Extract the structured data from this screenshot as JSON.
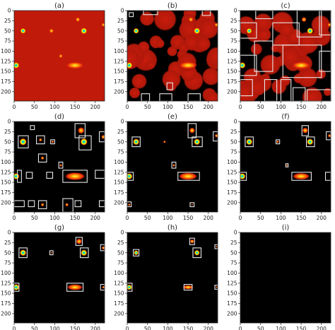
{
  "colors": {
    "background_heat": "#c01a0a",
    "background_zero": "#000000",
    "box": "#e8e8e8",
    "colormap": "jet-like"
  },
  "chart_data": [
    {
      "type": "heatmap",
      "title": "(a)",
      "x_ticks": [
        "0",
        "50",
        "100",
        "150",
        "200"
      ],
      "y_ticks": [
        "0",
        "25",
        "50",
        "75",
        "100",
        "125",
        "150",
        "175",
        "200"
      ],
      "xlim": [
        0,
        223
      ],
      "ylim": [
        223,
        0
      ],
      "background": "heat",
      "peaks": [
        {
          "x": 22,
          "y": 50,
          "radius": 7,
          "peak": 0.8
        },
        {
          "x": 172,
          "y": 50,
          "radius": 8,
          "peak": 0.8
        },
        {
          "x": 157,
          "y": 22,
          "radius": 6,
          "peak": 0.5
        },
        {
          "x": 220,
          "y": 35,
          "radius": 5,
          "peak": 0.4
        },
        {
          "x": 5,
          "y": 135,
          "radius": 8,
          "peak": 0.8
        },
        {
          "x": 150,
          "y": 135,
          "radius": 12,
          "peak": 0.45
        },
        {
          "x": 92,
          "y": 50,
          "radius": 6,
          "peak": 0.3
        },
        {
          "x": 115,
          "y": 112,
          "radius": 5,
          "peak": 0.3
        }
      ],
      "boxes": []
    },
    {
      "type": "heatmap",
      "title": "(b)",
      "x_ticks": [
        "0",
        "50",
        "100",
        "150",
        "200"
      ],
      "y_ticks": [
        "0",
        "25",
        "50",
        "75",
        "100",
        "125",
        "150",
        "175",
        "200"
      ],
      "xlim": [
        0,
        223
      ],
      "ylim": [
        223,
        0
      ],
      "background": "mixed",
      "peaks": [
        {
          "x": 22,
          "y": 50,
          "radius": 7,
          "peak": 0.8
        },
        {
          "x": 172,
          "y": 50,
          "radius": 8,
          "peak": 0.8
        },
        {
          "x": 157,
          "y": 22,
          "radius": 6,
          "peak": 0.5
        },
        {
          "x": 220,
          "y": 35,
          "radius": 5,
          "peak": 0.4
        },
        {
          "x": 5,
          "y": 135,
          "radius": 8,
          "peak": 0.8
        },
        {
          "x": 150,
          "y": 135,
          "radius": 12,
          "peak": 0.45
        }
      ],
      "boxes": [
        {
          "x0": 5,
          "y0": 5,
          "x1": 15,
          "y1": 15
        },
        {
          "x0": 40,
          "y0": 0,
          "x1": 75,
          "y1": 10
        },
        {
          "x0": 185,
          "y0": 0,
          "x1": 205,
          "y1": 12
        },
        {
          "x0": 98,
          "y0": 178,
          "x1": 112,
          "y1": 195
        },
        {
          "x0": 35,
          "y0": 205,
          "x1": 55,
          "y1": 223
        },
        {
          "x0": 80,
          "y0": 205,
          "x1": 110,
          "y1": 223
        },
        {
          "x0": 150,
          "y0": 205,
          "x1": 180,
          "y1": 223
        }
      ]
    },
    {
      "type": "heatmap",
      "title": "(c)",
      "x_ticks": [
        "0",
        "50",
        "100",
        "150",
        "200"
      ],
      "y_ticks": [
        "0",
        "25",
        "50",
        "75",
        "100",
        "125",
        "150",
        "175",
        "200"
      ],
      "xlim": [
        0,
        223
      ],
      "ylim": [
        223,
        0
      ],
      "background": "mixed",
      "peaks": [
        {
          "x": 22,
          "y": 50,
          "radius": 7,
          "peak": 0.8
        },
        {
          "x": 172,
          "y": 50,
          "radius": 8,
          "peak": 0.8
        },
        {
          "x": 157,
          "y": 22,
          "radius": 6,
          "peak": 0.5
        },
        {
          "x": 220,
          "y": 35,
          "radius": 5,
          "peak": 0.4
        },
        {
          "x": 5,
          "y": 135,
          "radius": 8,
          "peak": 0.8
        },
        {
          "x": 150,
          "y": 135,
          "radius": 12,
          "peak": 0.45
        }
      ],
      "boxes": [
        {
          "x0": 0,
          "y0": 30,
          "x1": 40,
          "y1": 68
        },
        {
          "x0": 38,
          "y0": 0,
          "x1": 80,
          "y1": 20
        },
        {
          "x0": 80,
          "y0": 30,
          "x1": 145,
          "y1": 85
        },
        {
          "x0": 140,
          "y0": 0,
          "x1": 200,
          "y1": 65
        },
        {
          "x0": 195,
          "y0": 0,
          "x1": 223,
          "y1": 60
        },
        {
          "x0": 0,
          "y0": 110,
          "x1": 40,
          "y1": 160
        },
        {
          "x0": 0,
          "y0": 170,
          "x1": 30,
          "y1": 210
        },
        {
          "x0": 35,
          "y0": 75,
          "x1": 80,
          "y1": 150
        },
        {
          "x0": 60,
          "y0": 170,
          "x1": 90,
          "y1": 223
        },
        {
          "x0": 105,
          "y0": 85,
          "x1": 200,
          "y1": 165
        },
        {
          "x0": 195,
          "y0": 100,
          "x1": 223,
          "y1": 150
        },
        {
          "x0": 100,
          "y0": 170,
          "x1": 125,
          "y1": 223
        },
        {
          "x0": 130,
          "y0": 190,
          "x1": 160,
          "y1": 223
        },
        {
          "x0": 165,
          "y0": 195,
          "x1": 223,
          "y1": 223
        }
      ]
    },
    {
      "type": "heatmap",
      "title": "(d)",
      "x_ticks": [
        "0",
        "50",
        "100",
        "150",
        "200"
      ],
      "y_ticks": [
        "0",
        "25",
        "50",
        "75",
        "100",
        "125",
        "150",
        "175",
        "200"
      ],
      "xlim": [
        0,
        223
      ],
      "ylim": [
        223,
        0
      ],
      "background": "zero",
      "peaks": [
        {
          "x": 22,
          "y": 50,
          "radius": 9,
          "peak": 0.8
        },
        {
          "x": 172,
          "y": 50,
          "radius": 9,
          "peak": 0.8
        },
        {
          "x": 165,
          "y": 22,
          "radius": 8,
          "peak": 0.5
        },
        {
          "x": 220,
          "y": 38,
          "radius": 5,
          "peak": 0.4
        },
        {
          "x": 5,
          "y": 135,
          "radius": 8,
          "peak": 0.8
        },
        {
          "x": 150,
          "y": 135,
          "radius": 13,
          "peak": 0.45
        },
        {
          "x": 65,
          "y": 45,
          "radius": 4,
          "peak": 0.3
        },
        {
          "x": 95,
          "y": 50,
          "radius": 3,
          "peak": 0.3
        },
        {
          "x": 115,
          "y": 108,
          "radius": 3,
          "peak": 0.3
        },
        {
          "x": 70,
          "y": 90,
          "radius": 4,
          "peak": 0.25
        },
        {
          "x": 70,
          "y": 205,
          "radius": 4,
          "peak": 0.25
        },
        {
          "x": 130,
          "y": 205,
          "radius": 4,
          "peak": 0.25
        }
      ],
      "boxes": [
        {
          "x0": 10,
          "y0": 35,
          "x1": 35,
          "y1": 65
        },
        {
          "x0": 8,
          "y0": 120,
          "x1": 18,
          "y1": 150
        },
        {
          "x0": 120,
          "y0": 120,
          "x1": 180,
          "y1": 150
        },
        {
          "x0": 150,
          "y0": 5,
          "x1": 175,
          "y1": 40
        },
        {
          "x0": 160,
          "y0": 35,
          "x1": 190,
          "y1": 70
        },
        {
          "x0": 210,
          "y0": 25,
          "x1": 223,
          "y1": 50
        },
        {
          "x0": 55,
          "y0": 35,
          "x1": 75,
          "y1": 55
        },
        {
          "x0": 90,
          "y0": 45,
          "x1": 100,
          "y1": 55
        },
        {
          "x0": 110,
          "y0": 100,
          "x1": 120,
          "y1": 115
        },
        {
          "x0": 60,
          "y0": 80,
          "x1": 80,
          "y1": 100
        },
        {
          "x0": 40,
          "y0": 10,
          "x1": 50,
          "y1": 20
        },
        {
          "x0": 30,
          "y0": 125,
          "x1": 45,
          "y1": 140
        },
        {
          "x0": 80,
          "y0": 125,
          "x1": 95,
          "y1": 140
        },
        {
          "x0": 200,
          "y0": 120,
          "x1": 223,
          "y1": 140
        },
        {
          "x0": 0,
          "y0": 195,
          "x1": 25,
          "y1": 210
        },
        {
          "x0": 35,
          "y0": 195,
          "x1": 50,
          "y1": 210
        },
        {
          "x0": 60,
          "y0": 195,
          "x1": 80,
          "y1": 215
        },
        {
          "x0": 120,
          "y0": 190,
          "x1": 145,
          "y1": 223
        },
        {
          "x0": 150,
          "y0": 195,
          "x1": 165,
          "y1": 210
        },
        {
          "x0": 210,
          "y0": 195,
          "x1": 223,
          "y1": 210
        }
      ]
    },
    {
      "type": "heatmap",
      "title": "(e)",
      "x_ticks": [
        "0",
        "50",
        "100",
        "150",
        "200"
      ],
      "y_ticks": [
        "0",
        "25",
        "50",
        "75",
        "100",
        "125",
        "150",
        "175",
        "200"
      ],
      "xlim": [
        0,
        223
      ],
      "ylim": [
        223,
        0
      ],
      "background": "zero",
      "peaks": [
        {
          "x": 22,
          "y": 50,
          "radius": 8,
          "peak": 0.8
        },
        {
          "x": 172,
          "y": 50,
          "radius": 8,
          "peak": 0.8
        },
        {
          "x": 160,
          "y": 22,
          "radius": 7,
          "peak": 0.5
        },
        {
          "x": 220,
          "y": 35,
          "radius": 4,
          "peak": 0.4
        },
        {
          "x": 5,
          "y": 135,
          "radius": 8,
          "peak": 0.8
        },
        {
          "x": 150,
          "y": 135,
          "radius": 12,
          "peak": 0.45
        },
        {
          "x": 92,
          "y": 50,
          "radius": 3,
          "peak": 0.3
        },
        {
          "x": 115,
          "y": 108,
          "radius": 3,
          "peak": 0.3
        },
        {
          "x": 5,
          "y": 205,
          "radius": 3,
          "peak": 0.25
        },
        {
          "x": 160,
          "y": 205,
          "radius": 2,
          "peak": 0.25
        }
      ],
      "boxes": [
        {
          "x0": 12,
          "y0": 38,
          "x1": 32,
          "y1": 62
        },
        {
          "x0": 160,
          "y0": 38,
          "x1": 185,
          "y1": 62
        },
        {
          "x0": 150,
          "y0": 5,
          "x1": 170,
          "y1": 40
        },
        {
          "x0": 212,
          "y0": 25,
          "x1": 223,
          "y1": 48
        },
        {
          "x0": 0,
          "y0": 125,
          "x1": 15,
          "y1": 145
        },
        {
          "x0": 125,
          "y0": 125,
          "x1": 178,
          "y1": 145
        },
        {
          "x0": 110,
          "y0": 100,
          "x1": 120,
          "y1": 115
        },
        {
          "x0": 0,
          "y0": 198,
          "x1": 10,
          "y1": 210
        },
        {
          "x0": 155,
          "y0": 200,
          "x1": 165,
          "y1": 210
        }
      ]
    },
    {
      "type": "heatmap",
      "title": "(f)",
      "x_ticks": [
        "0",
        "50",
        "100",
        "150",
        "200"
      ],
      "y_ticks": [
        "0",
        "25",
        "50",
        "75",
        "100",
        "125",
        "150",
        "175",
        "200"
      ],
      "xlim": [
        0,
        223
      ],
      "ylim": [
        223,
        0
      ],
      "background": "zero",
      "peaks": [
        {
          "x": 22,
          "y": 50,
          "radius": 8,
          "peak": 0.8
        },
        {
          "x": 172,
          "y": 50,
          "radius": 8,
          "peak": 0.8
        },
        {
          "x": 160,
          "y": 22,
          "radius": 7,
          "peak": 0.5
        },
        {
          "x": 220,
          "y": 35,
          "radius": 4,
          "peak": 0.4
        },
        {
          "x": 5,
          "y": 135,
          "radius": 8,
          "peak": 0.8
        },
        {
          "x": 150,
          "y": 135,
          "radius": 11,
          "peak": 0.45
        },
        {
          "x": 92,
          "y": 50,
          "radius": 3,
          "peak": 0.3
        },
        {
          "x": 115,
          "y": 108,
          "radius": 2,
          "peak": 0.3
        }
      ],
      "boxes": [
        {
          "x0": 12,
          "y0": 38,
          "x1": 32,
          "y1": 62
        },
        {
          "x0": 163,
          "y0": 38,
          "x1": 183,
          "y1": 62
        },
        {
          "x0": 152,
          "y0": 10,
          "x1": 168,
          "y1": 35
        },
        {
          "x0": 212,
          "y0": 25,
          "x1": 223,
          "y1": 45
        },
        {
          "x0": 0,
          "y0": 125,
          "x1": 15,
          "y1": 145
        },
        {
          "x0": 127,
          "y0": 125,
          "x1": 175,
          "y1": 145
        },
        {
          "x0": 88,
          "y0": 45,
          "x1": 97,
          "y1": 55
        },
        {
          "x0": 112,
          "y0": 104,
          "x1": 118,
          "y1": 112
        },
        {
          "x0": 210,
          "y0": 125,
          "x1": 223,
          "y1": 145
        }
      ]
    },
    {
      "type": "heatmap",
      "title": "(g)",
      "x_ticks": [
        "0",
        "50",
        "100",
        "150",
        "200"
      ],
      "y_ticks": [
        "0",
        "25",
        "50",
        "75",
        "100",
        "125",
        "150",
        "175",
        "200"
      ],
      "xlim": [
        0,
        223
      ],
      "ylim": [
        223,
        0
      ],
      "background": "zero",
      "peaks": [
        {
          "x": 22,
          "y": 50,
          "radius": 8,
          "peak": 0.8
        },
        {
          "x": 172,
          "y": 50,
          "radius": 8,
          "peak": 0.8
        },
        {
          "x": 160,
          "y": 22,
          "radius": 7,
          "peak": 0.5
        },
        {
          "x": 220,
          "y": 38,
          "radius": 4,
          "peak": 0.4
        },
        {
          "x": 5,
          "y": 135,
          "radius": 8,
          "peak": 0.8
        },
        {
          "x": 150,
          "y": 135,
          "radius": 10,
          "peak": 0.45
        },
        {
          "x": 92,
          "y": 50,
          "radius": 2,
          "peak": 0.3
        },
        {
          "x": 220,
          "y": 135,
          "radius": 3,
          "peak": 0.3
        }
      ],
      "boxes": [
        {
          "x0": 12,
          "y0": 38,
          "x1": 32,
          "y1": 62
        },
        {
          "x0": 163,
          "y0": 38,
          "x1": 183,
          "y1": 62
        },
        {
          "x0": 152,
          "y0": 12,
          "x1": 168,
          "y1": 32
        },
        {
          "x0": 213,
          "y0": 30,
          "x1": 223,
          "y1": 45
        },
        {
          "x0": 0,
          "y0": 125,
          "x1": 12,
          "y1": 145
        },
        {
          "x0": 130,
          "y0": 125,
          "x1": 170,
          "y1": 145
        },
        {
          "x0": 88,
          "y0": 45,
          "x1": 96,
          "y1": 55
        },
        {
          "x0": 213,
          "y0": 128,
          "x1": 223,
          "y1": 142
        }
      ]
    },
    {
      "type": "heatmap",
      "title": "(h)",
      "x_ticks": [
        "0",
        "50",
        "100",
        "150",
        "200"
      ],
      "y_ticks": [
        "0",
        "25",
        "50",
        "75",
        "100",
        "125",
        "150",
        "175",
        "200"
      ],
      "xlim": [
        0,
        223
      ],
      "ylim": [
        223,
        0
      ],
      "background": "zero",
      "peaks": [
        {
          "x": 22,
          "y": 50,
          "radius": 6,
          "peak": 0.8
        },
        {
          "x": 172,
          "y": 50,
          "radius": 7,
          "peak": 0.8
        },
        {
          "x": 160,
          "y": 22,
          "radius": 5,
          "peak": 0.5
        },
        {
          "x": 5,
          "y": 135,
          "radius": 7,
          "peak": 0.8
        },
        {
          "x": 150,
          "y": 135,
          "radius": 7,
          "peak": 0.45
        },
        {
          "x": 220,
          "y": 35,
          "radius": 2,
          "peak": 0.35
        },
        {
          "x": 220,
          "y": 135,
          "radius": 2,
          "peak": 0.35
        }
      ],
      "boxes": [
        {
          "x0": 15,
          "y0": 42,
          "x1": 29,
          "y1": 58
        },
        {
          "x0": 162,
          "y0": 38,
          "x1": 182,
          "y1": 62
        },
        {
          "x0": 154,
          "y0": 14,
          "x1": 166,
          "y1": 30
        },
        {
          "x0": 0,
          "y0": 125,
          "x1": 12,
          "y1": 145
        },
        {
          "x0": 140,
          "y0": 128,
          "x1": 160,
          "y1": 142
        },
        {
          "x0": 216,
          "y0": 30,
          "x1": 223,
          "y1": 40
        },
        {
          "x0": 216,
          "y0": 130,
          "x1": 223,
          "y1": 140
        }
      ]
    },
    {
      "type": "heatmap",
      "title": "(i)",
      "x_ticks": [
        "0",
        "50",
        "100",
        "150",
        "200"
      ],
      "y_ticks": [
        "0",
        "25",
        "50",
        "75",
        "100",
        "125",
        "150",
        "175",
        "200"
      ],
      "xlim": [
        0,
        223
      ],
      "ylim": [
        223,
        0
      ],
      "background": "zero",
      "peaks": [],
      "boxes": []
    }
  ]
}
